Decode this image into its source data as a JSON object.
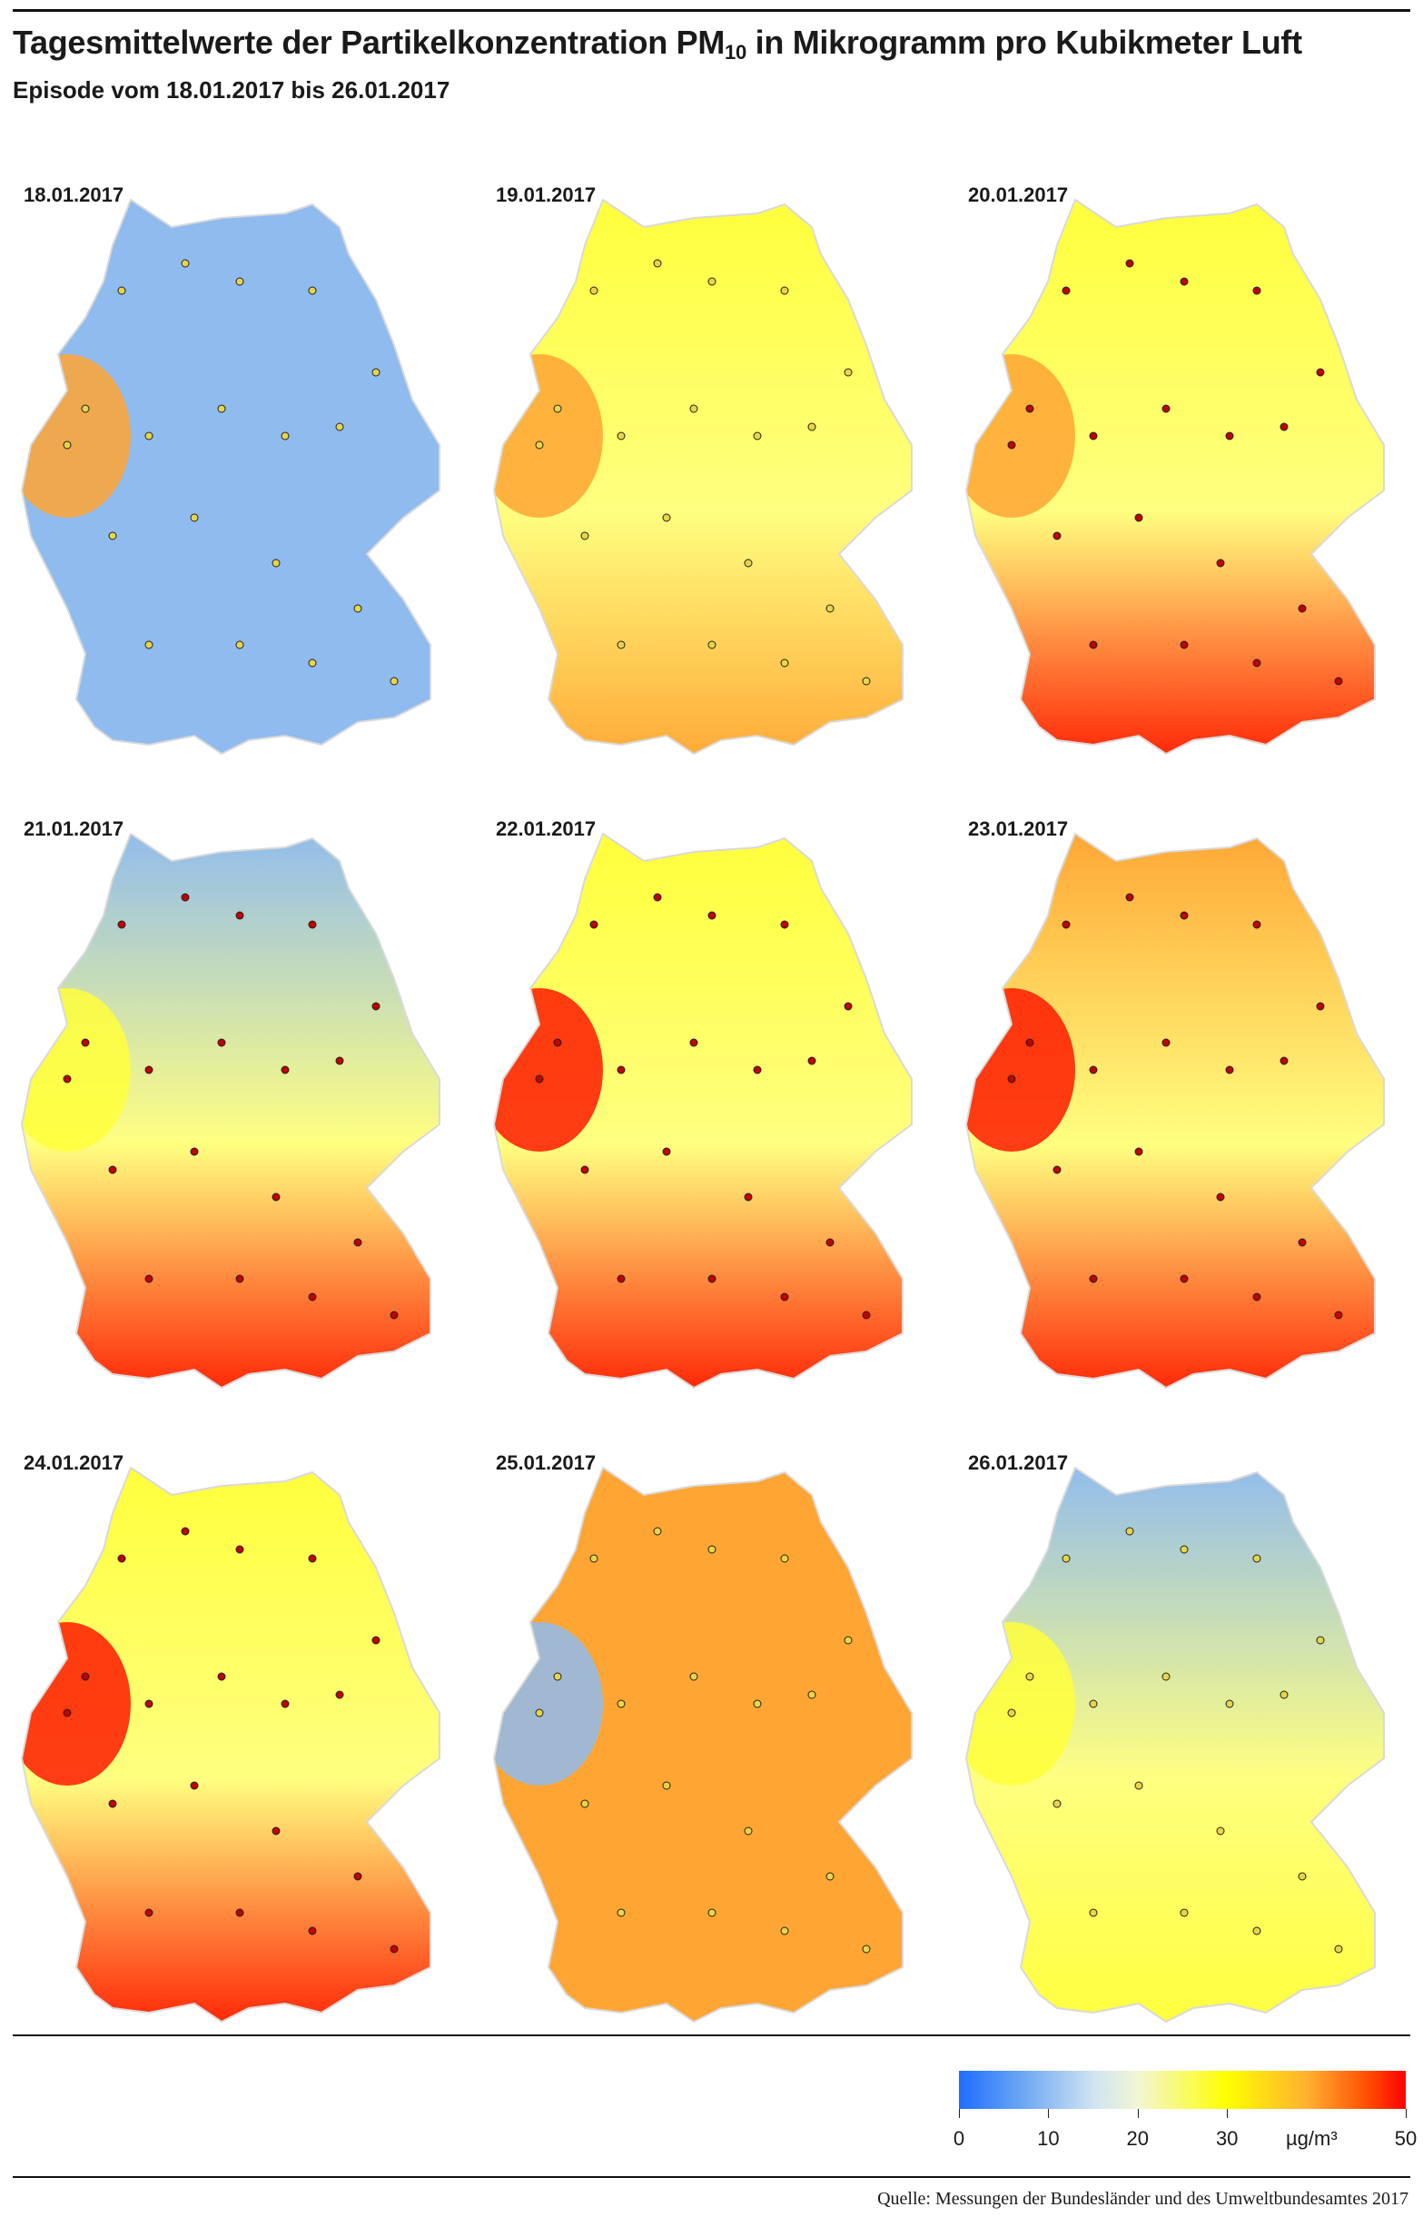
{
  "header": {
    "title_main": "Tagesmittelwerte der Partikelkonzentration PM",
    "title_sub": "10",
    "title_rest": " in Mikrogramm pro Kubikmeter Luft",
    "subtitle": "Episode vom 18.01.2017  bis 26.01.2017"
  },
  "panels": [
    {
      "date": "18.01.2017",
      "south": "blue",
      "north": "blue",
      "west": "orange"
    },
    {
      "date": "19.01.2017",
      "south": "orange",
      "north": "yellow",
      "west": "orange"
    },
    {
      "date": "20.01.2017",
      "south": "red",
      "north": "yellow",
      "west": "orange"
    },
    {
      "date": "21.01.2017",
      "south": "red",
      "north": "blue",
      "west": "yellow"
    },
    {
      "date": "22.01.2017",
      "south": "red",
      "north": "yellow",
      "west": "red"
    },
    {
      "date": "23.01.2017",
      "south": "red",
      "north": "orange",
      "west": "red"
    },
    {
      "date": "24.01.2017",
      "south": "red",
      "north": "yellow",
      "west": "red"
    },
    {
      "date": "25.01.2017",
      "south": "orange",
      "north": "orange",
      "west": "blue"
    },
    {
      "date": "26.01.2017",
      "south": "yellow",
      "north": "blue",
      "west": "yellow"
    }
  ],
  "legend": {
    "ticks": [
      "0",
      "10",
      "20",
      "30",
      "50"
    ],
    "tick_values": [
      0,
      10,
      20,
      30,
      50
    ],
    "unit": "µg/m³",
    "colors": [
      "#1f6dff",
      "#cfe3f2",
      "#ffff00",
      "#ff0000"
    ]
  },
  "footer": {
    "source": "Quelle: Messungen der Bundesländer und des Umweltbundesamtes 2017"
  }
}
